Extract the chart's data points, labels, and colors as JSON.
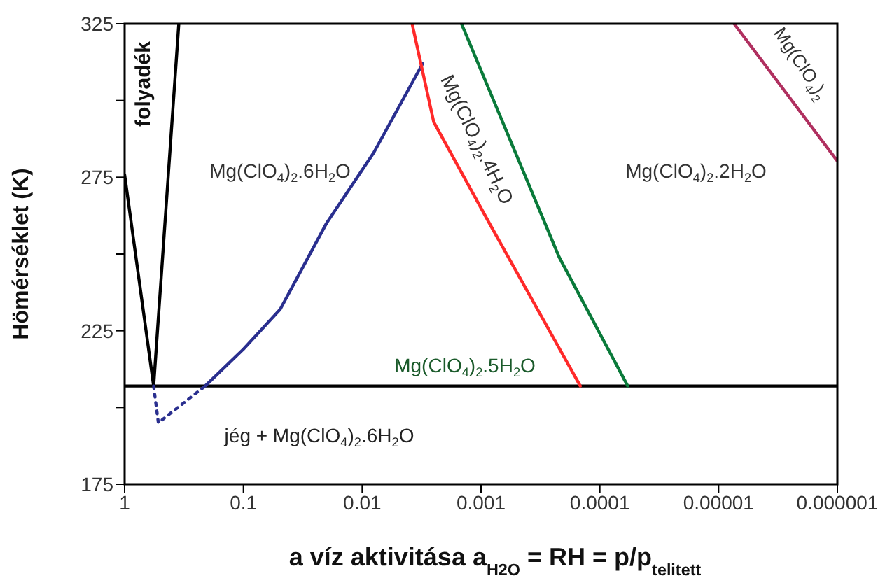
{
  "chart_data": {
    "type": "line",
    "xlabel": "a víz aktivitása   a$_{H2O}$ = RH = p/p$_{telitett}$",
    "ylabel": "Hömérséklet (K)",
    "log": "x",
    "xlim": [
      1,
      1e-06
    ],
    "xticks": [
      1,
      0.1,
      0.01,
      0.001,
      0.0001,
      {
        "value": 1e-05,
        "label": "0.00001"
      },
      {
        "value": 1e-06,
        "label": "0.000001"
      }
    ],
    "ylim": [
      175,
      325
    ],
    "yticks": [
      175,
      {
        "value": 200,
        "label": null
      },
      225,
      {
        "value": 250,
        "label": null
      },
      275,
      {
        "value": 300,
        "label": null
      },
      325
    ],
    "grid": false,
    "legend": false,
    "marker": "none",
    "series": [
      {
        "color": "#000000",
        "x": [
          1,
          1e-06
        ],
        "values": [
          207,
          207
        ]
      },
      {
        "color": "#000000",
        "x": [
          1,
          0.57,
          0.35
        ],
        "values": [
          275.8,
          207,
          325
        ]
      },
      {
        "color": "#2a2f8f",
        "line_style": "dotted",
        "x": [
          0.57,
          0.52,
          0.21
        ],
        "values": [
          207,
          195,
          207
        ]
      },
      {
        "color": "#2a2f8f",
        "x": [
          0.21,
          0.1,
          0.049,
          0.02,
          0.008,
          0.0031
        ],
        "values": [
          207,
          219,
          232,
          260,
          283,
          312
        ]
      },
      {
        "color": "#ff2a2a",
        "x": [
          0.0038,
          0.0025,
          0.00085,
          0.000146
        ],
        "values": [
          325,
          293,
          260,
          207
        ]
      },
      {
        "color": "#0a7a3a",
        "x": [
          0.00146,
          0.00022,
          5.82e-05
        ],
        "values": [
          325,
          249,
          207
        ]
      },
      {
        "color": "#b03060",
        "x": [
          7.4e-06,
          1e-06
        ],
        "values": [
          325,
          280.3
        ]
      }
    ],
    "annotations": [
      "folyadék",
      "Mg(ClO$_{4}$)$_{2}$.6H$_{2}$O",
      "Mg(ClO$_{4}$)$_{2}$.4H$_{2}$O",
      "Mg(ClO$_{4}$)$_{2}$.2H$_{2}$O",
      "Mg(ClO$_{4}$)$_{2}$.5H$_{2}$O",
      "Mg(ClO$_{4}$)$_{2}$",
      "jég + Mg(ClO$_{4}$)$_{2}$.6H$_{2}$O"
    ]
  }
}
